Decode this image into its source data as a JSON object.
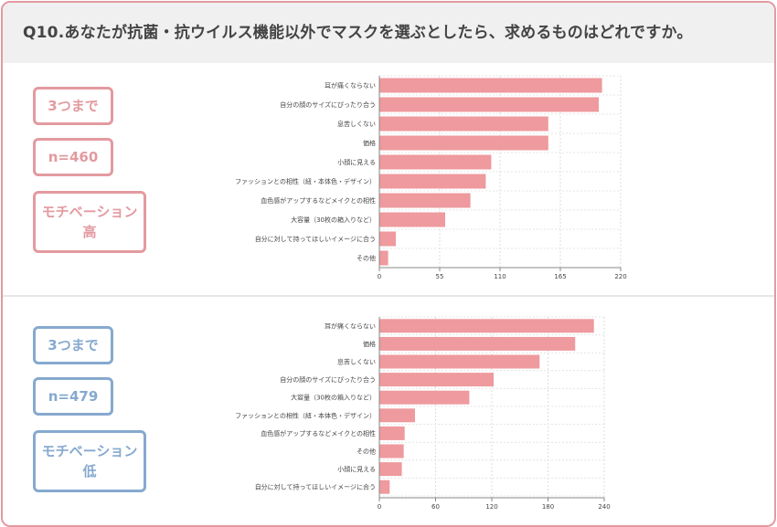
{
  "title": "Q10.あなたが抗菌・抗ウイルス機能以外でマスクを選ぶとしたら、求めるものはどれですか。",
  "colors": {
    "border": "#e39aa0",
    "bar": "#ee9a9e",
    "high": "#e39aa0",
    "low": "#86a9cf"
  },
  "panels": [
    {
      "badge_top": "3つまで",
      "badge_n": "n=460",
      "badge_motivation": "モチベーション",
      "badge_level": "高"
    },
    {
      "badge_top": "3つまで",
      "badge_n": "n=479",
      "badge_motivation": "モチベーション",
      "badge_level": "低"
    }
  ],
  "chart_data": [
    {
      "type": "bar",
      "orientation": "horizontal",
      "categories": [
        "耳が痛くならない",
        "自分の顔のサイズにぴったり合う",
        "息苦しくない",
        "価格",
        "小顔に見える",
        "ファッションとの相性（紐・本体色・デザイン）",
        "血色感がアップするなどメイクとの相性",
        "大容量（30枚の箱入りなど）",
        "自分に対して持ってほしいイメージに合う",
        "その他"
      ],
      "values": [
        203,
        200,
        154,
        154,
        102,
        97,
        83,
        60,
        15,
        8
      ],
      "xlim": [
        0,
        220
      ],
      "xticks": [
        0,
        55,
        110,
        165,
        220
      ],
      "grid": true
    },
    {
      "type": "bar",
      "orientation": "horizontal",
      "categories": [
        "耳が痛くならない",
        "価格",
        "息苦しくない",
        "自分の顔のサイズにぴったり合う",
        "大容量（30枚の箱入りなど）",
        "ファッションとの相性（紐・本体色・デザイン）",
        "血色感がアップするなどメイクとの相性",
        "その他",
        "小顔に見える",
        "自分に対して持ってほしいイメージに合う"
      ],
      "values": [
        229,
        209,
        171,
        122,
        96,
        38,
        27,
        26,
        24,
        11
      ],
      "xlim": [
        0,
        240
      ],
      "xticks": [
        0,
        60,
        120,
        180,
        240
      ],
      "grid": true
    }
  ]
}
